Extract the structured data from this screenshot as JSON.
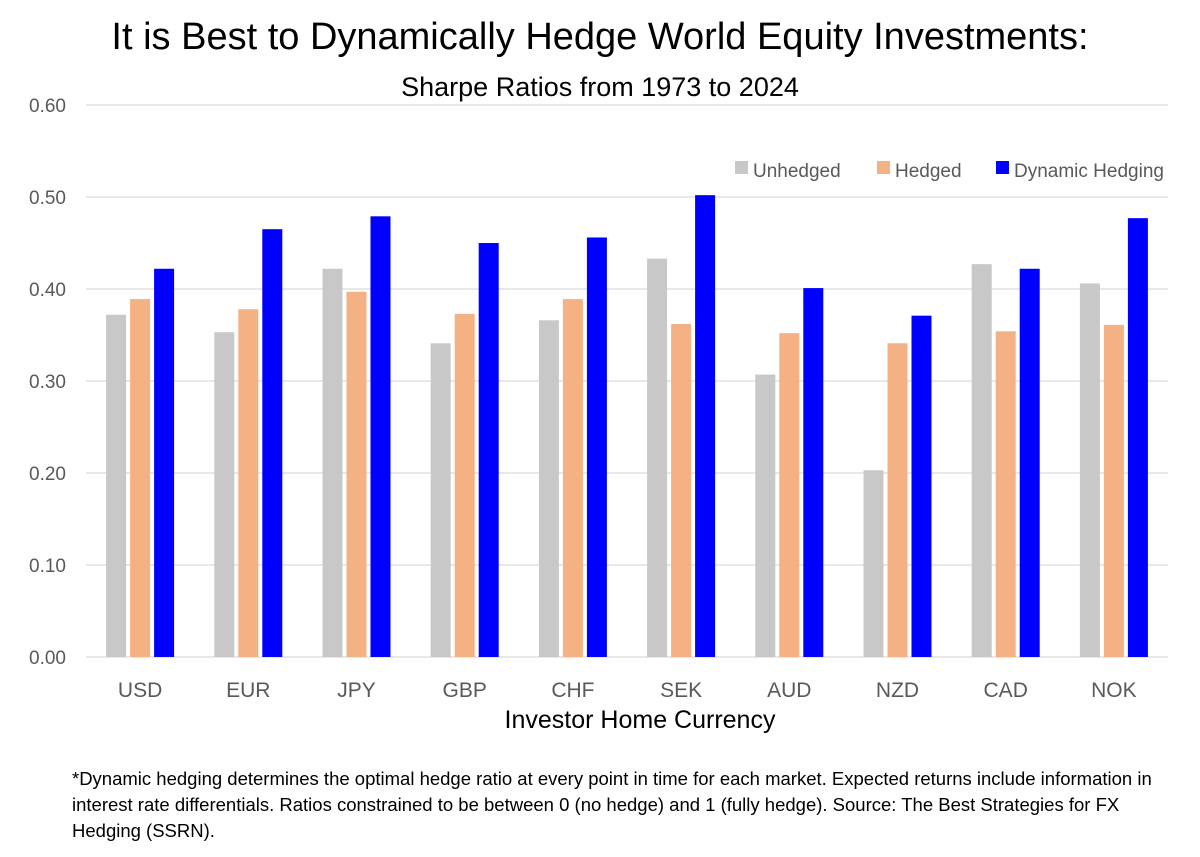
{
  "chart_data": {
    "type": "bar",
    "title": "It is Best to Dynamically Hedge World Equity Investments:",
    "subtitle": "Sharpe Ratios from 1973 to 2024",
    "xlabel": "Investor Home Currency",
    "ylabel": "",
    "ylim": [
      0,
      0.6
    ],
    "yticks": [
      "0.00",
      "0.10",
      "0.20",
      "0.30",
      "0.40",
      "0.50",
      "0.60"
    ],
    "grid": true,
    "legend_position": "top-right",
    "categories": [
      "USD",
      "EUR",
      "JPY",
      "GBP",
      "CHF",
      "SEK",
      "AUD",
      "NZD",
      "CAD",
      "NOK"
    ],
    "series": [
      {
        "name": "Unhedged",
        "color": "#c8c8c8",
        "values": [
          0.372,
          0.353,
          0.422,
          0.341,
          0.366,
          0.433,
          0.307,
          0.203,
          0.427,
          0.406
        ]
      },
      {
        "name": "Hedged",
        "color": "#f4b183",
        "values": [
          0.389,
          0.378,
          0.397,
          0.373,
          0.389,
          0.362,
          0.352,
          0.341,
          0.354,
          0.361
        ]
      },
      {
        "name": "Dynamic Hedging",
        "color": "#0000ff",
        "values": [
          0.422,
          0.465,
          0.479,
          0.45,
          0.456,
          0.502,
          0.401,
          0.371,
          0.422,
          0.477
        ]
      }
    ]
  },
  "footnote": "*Dynamic hedging determines the optimal hedge ratio at every point in time for each market. Expected returns include information in interest rate differentials.  Ratios constrained to be between 0 (no hedge) and 1 (fully hedge). Source: The Best Strategies for FX Hedging (SSRN)."
}
